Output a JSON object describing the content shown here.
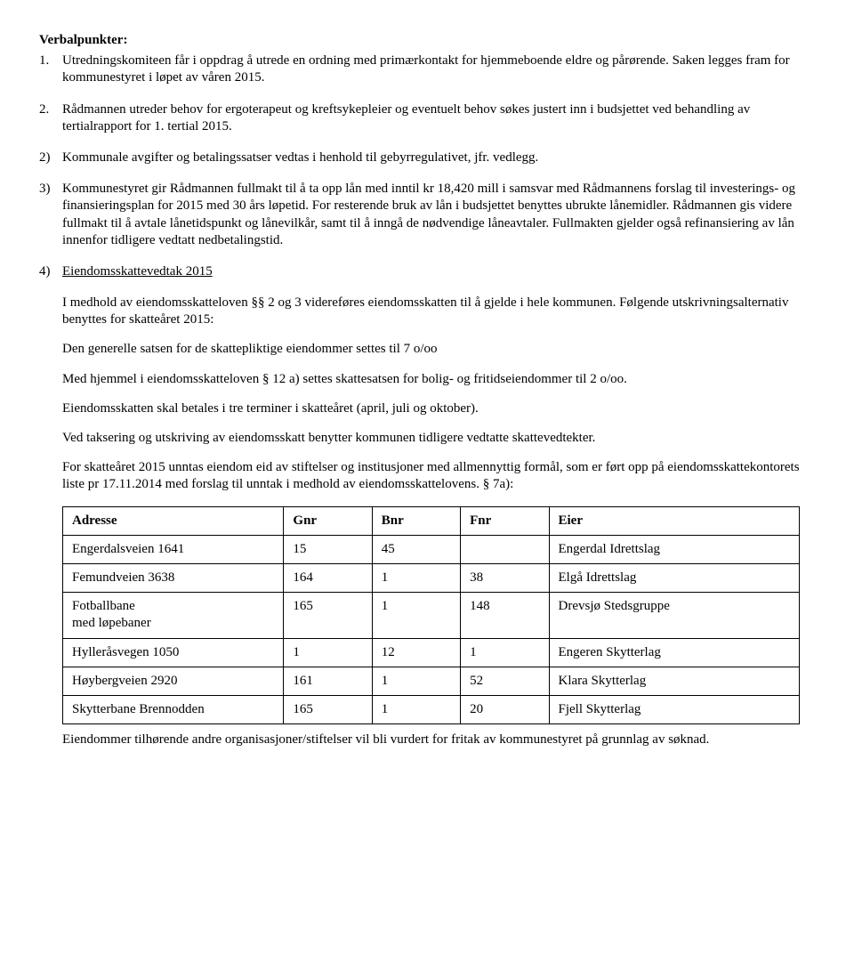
{
  "title": "Verbalpunkter:",
  "items": {
    "p1a": "Utredningskomiteen får i oppdrag å utrede en ordning med primærkontakt for hjemmeboende eldre og pårørende. Saken legges fram for kommunestyret i løpet av våren 2015.",
    "p1b": "Rådmannen utreder behov for ergoterapeut og kreftsykepleier og eventuelt behov søkes justert inn i budsjettet ved behandling av tertialrapport for 1. tertial 2015.",
    "p2": "Kommunale avgifter og betalingssatser vedtas i henhold til gebyrregulativet, jfr. vedlegg.",
    "p3": "Kommunestyret gir Rådmannen fullmakt til å ta opp lån med inntil kr 18,420 mill i samsvar med Rådmannens forslag til investerings- og finansieringsplan for 2015 med 30 års løpetid. For resterende bruk av lån i budsjettet benyttes ubrukte lånemidler. Rådmannen gis videre fullmakt til å avtale lånetidspunkt og lånevilkår, samt til å inngå de nødvendige låneavtaler. Fullmakten gjelder også refinansiering av lån innenfor tidligere vedtatt nedbetalingstid.",
    "p4_title": "Eiendomsskattevedtak 2015",
    "p4_a": "I medhold av eiendomsskatteloven §§ 2 og 3 videreføres eiendomsskatten til å gjelde i hele kommunen. Følgende utskrivningsalternativ benyttes for skatteåret 2015:",
    "p4_b": "Den generelle satsen for de skattepliktige eiendommer settes til 7 o/oo",
    "p4_c": "Med hjemmel i eiendomsskatteloven § 12 a) settes skattesatsen for bolig- og fritidseiendommer til 2 o/oo.",
    "p4_d": "Eiendomsskatten skal betales i tre terminer i skatteåret (april, juli og oktober).",
    "p4_e": "Ved taksering og utskriving av eiendomsskatt benytter kommunen tidligere vedtatte skattevedtekter.",
    "p4_f": "For skatteåret 2015 unntas eiendom eid av stiftelser og institusjoner med allmennyttig formål, som er ført opp på eiendomsskattekontorets liste pr 17.11.2014 med forslag til unntak i medhold av eiendomsskattelovens. § 7a):",
    "p4_g": "Eiendommer tilhørende andre organisasjoner/stiftelser vil bli vurdert for fritak av kommunestyret på grunnlag av søknad."
  },
  "numbers": {
    "n1": "1.",
    "n1b": "2.",
    "n2": "2)",
    "n3": "3)",
    "n4": "4)"
  },
  "table": {
    "headers": {
      "adresse": "Adresse",
      "gnr": "Gnr",
      "bnr": "Bnr",
      "fnr": "Fnr",
      "eier": "Eier"
    },
    "rows": [
      {
        "adresse": "Engerdalsveien 1641",
        "gnr": "15",
        "bnr": "45",
        "fnr": "",
        "eier": "Engerdal Idrettslag"
      },
      {
        "adresse": "Femundveien 3638",
        "gnr": "164",
        "bnr": "1",
        "fnr": "38",
        "eier": "Elgå Idrettslag"
      },
      {
        "adresse": "Fotballbane\nmed løpebaner",
        "gnr": "165",
        "bnr": "1",
        "fnr": "148",
        "eier": "Drevsjø Stedsgruppe"
      },
      {
        "adresse": "Hylleråsvegen 1050",
        "gnr": "1",
        "bnr": "12",
        "fnr": "1",
        "eier": "Engeren Skytterlag"
      },
      {
        "adresse": "Høybergveien 2920",
        "gnr": "161",
        "bnr": "1",
        "fnr": "52",
        "eier": "Klara Skytterlag"
      },
      {
        "adresse": "Skytterbane Brennodden",
        "gnr": "165",
        "bnr": "1",
        "fnr": "20",
        "eier": "Fjell Skytterlag"
      }
    ]
  }
}
